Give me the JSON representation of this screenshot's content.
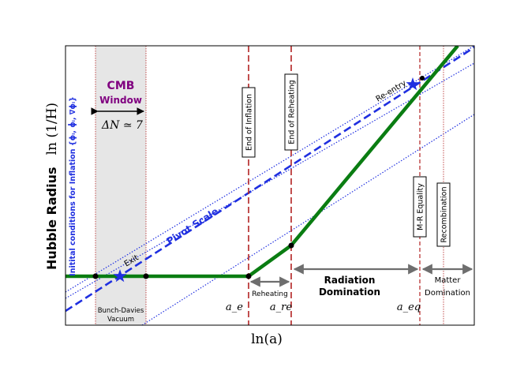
{
  "axes": {
    "x_label": "ln(a)",
    "y_label_prefix": "Hubble Radius",
    "y_label_math": "ln (1/H)"
  },
  "left_note": "Initital conditions for Inflation {ϕᵢ, ϕ̇ᵢ, ∇ϕᵢ}",
  "cmb_window": {
    "title_line1": "CMB",
    "title_line2": "Window",
    "delta_n": "ΔN ≃ 7",
    "vacuum_line1": "Bunch-Davies",
    "vacuum_line2": "Vacuum"
  },
  "vertical_markers": {
    "end_inflation": "End of Inflation",
    "end_reheating": "End of Reheating",
    "mr_equality": "M-R Equality",
    "recombination": "Recombination"
  },
  "x_ticks": {
    "a_e": "a_e",
    "a_re": "a_re",
    "a_eq": "a_eq"
  },
  "eras": {
    "reheating": "Reheating",
    "radiation_line1": "Radiation",
    "radiation_line2": "Domination",
    "matter_line1": "Matter",
    "matter_line2": "Domination"
  },
  "annotations": {
    "pivot_scale": "Pivot Scale",
    "exit": "Exit",
    "re_entry": "Re-entry"
  },
  "colors": {
    "hubble_curve": "#0a7d12",
    "pivot_line": "#1f2fe0",
    "modes": "#1f2fe0",
    "marker_dashed": "#b22222",
    "cmb_title": "#800080",
    "window_fill": "#e6e6e6"
  }
}
